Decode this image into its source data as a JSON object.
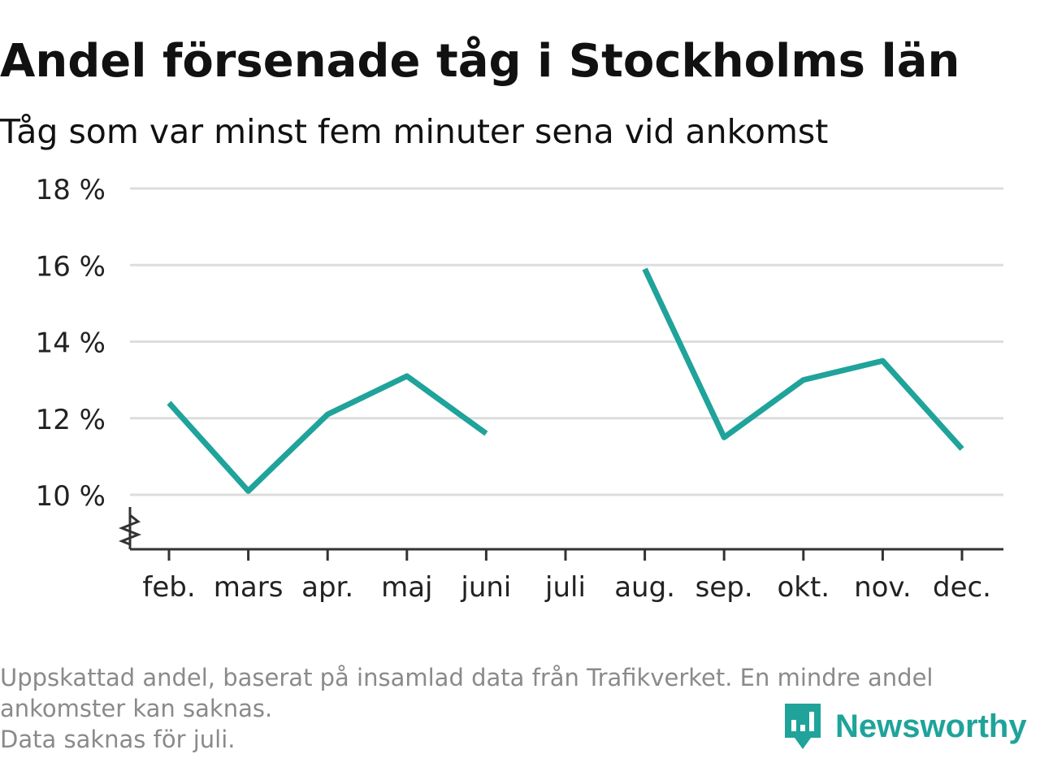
{
  "chart_data": {
    "type": "line",
    "title": "Andel försenade tåg i Stockholms län",
    "subtitle": "Tåg som var minst fem minuter sena vid ankomst",
    "xlabel": "",
    "ylabel": "",
    "categories": [
      "feb.",
      "mars",
      "apr.",
      "maj",
      "juni",
      "juli",
      "aug.",
      "sep.",
      "okt.",
      "nov.",
      "dec."
    ],
    "series": [
      {
        "values": [
          12.4,
          10.1,
          12.1,
          13.1,
          11.6,
          null,
          15.9,
          11.5,
          13.0,
          13.5,
          11.2
        ]
      }
    ],
    "ylim": [
      10,
      18
    ],
    "yticks": [
      10,
      12,
      14,
      16,
      18
    ],
    "ytick_labels": [
      "10 %",
      "12 %",
      "14 %",
      "16 %",
      "18 %"
    ],
    "y_axis_broken": true,
    "grid": true,
    "legend": "none",
    "line_color": "#1fa39a",
    "grid_color": "#dddddd",
    "axis_color": "#333333"
  },
  "footnote": {
    "line1": "Uppskattad andel, baserat på insamlad data från Trafikverket. En mindre andel",
    "line2": "ankomster kan saknas.",
    "line3": "Data saknas för juli."
  },
  "logo": {
    "text": "Newsworthy",
    "icon": "newsworthy-chart-bubble-icon",
    "color": "#1fa39a"
  }
}
